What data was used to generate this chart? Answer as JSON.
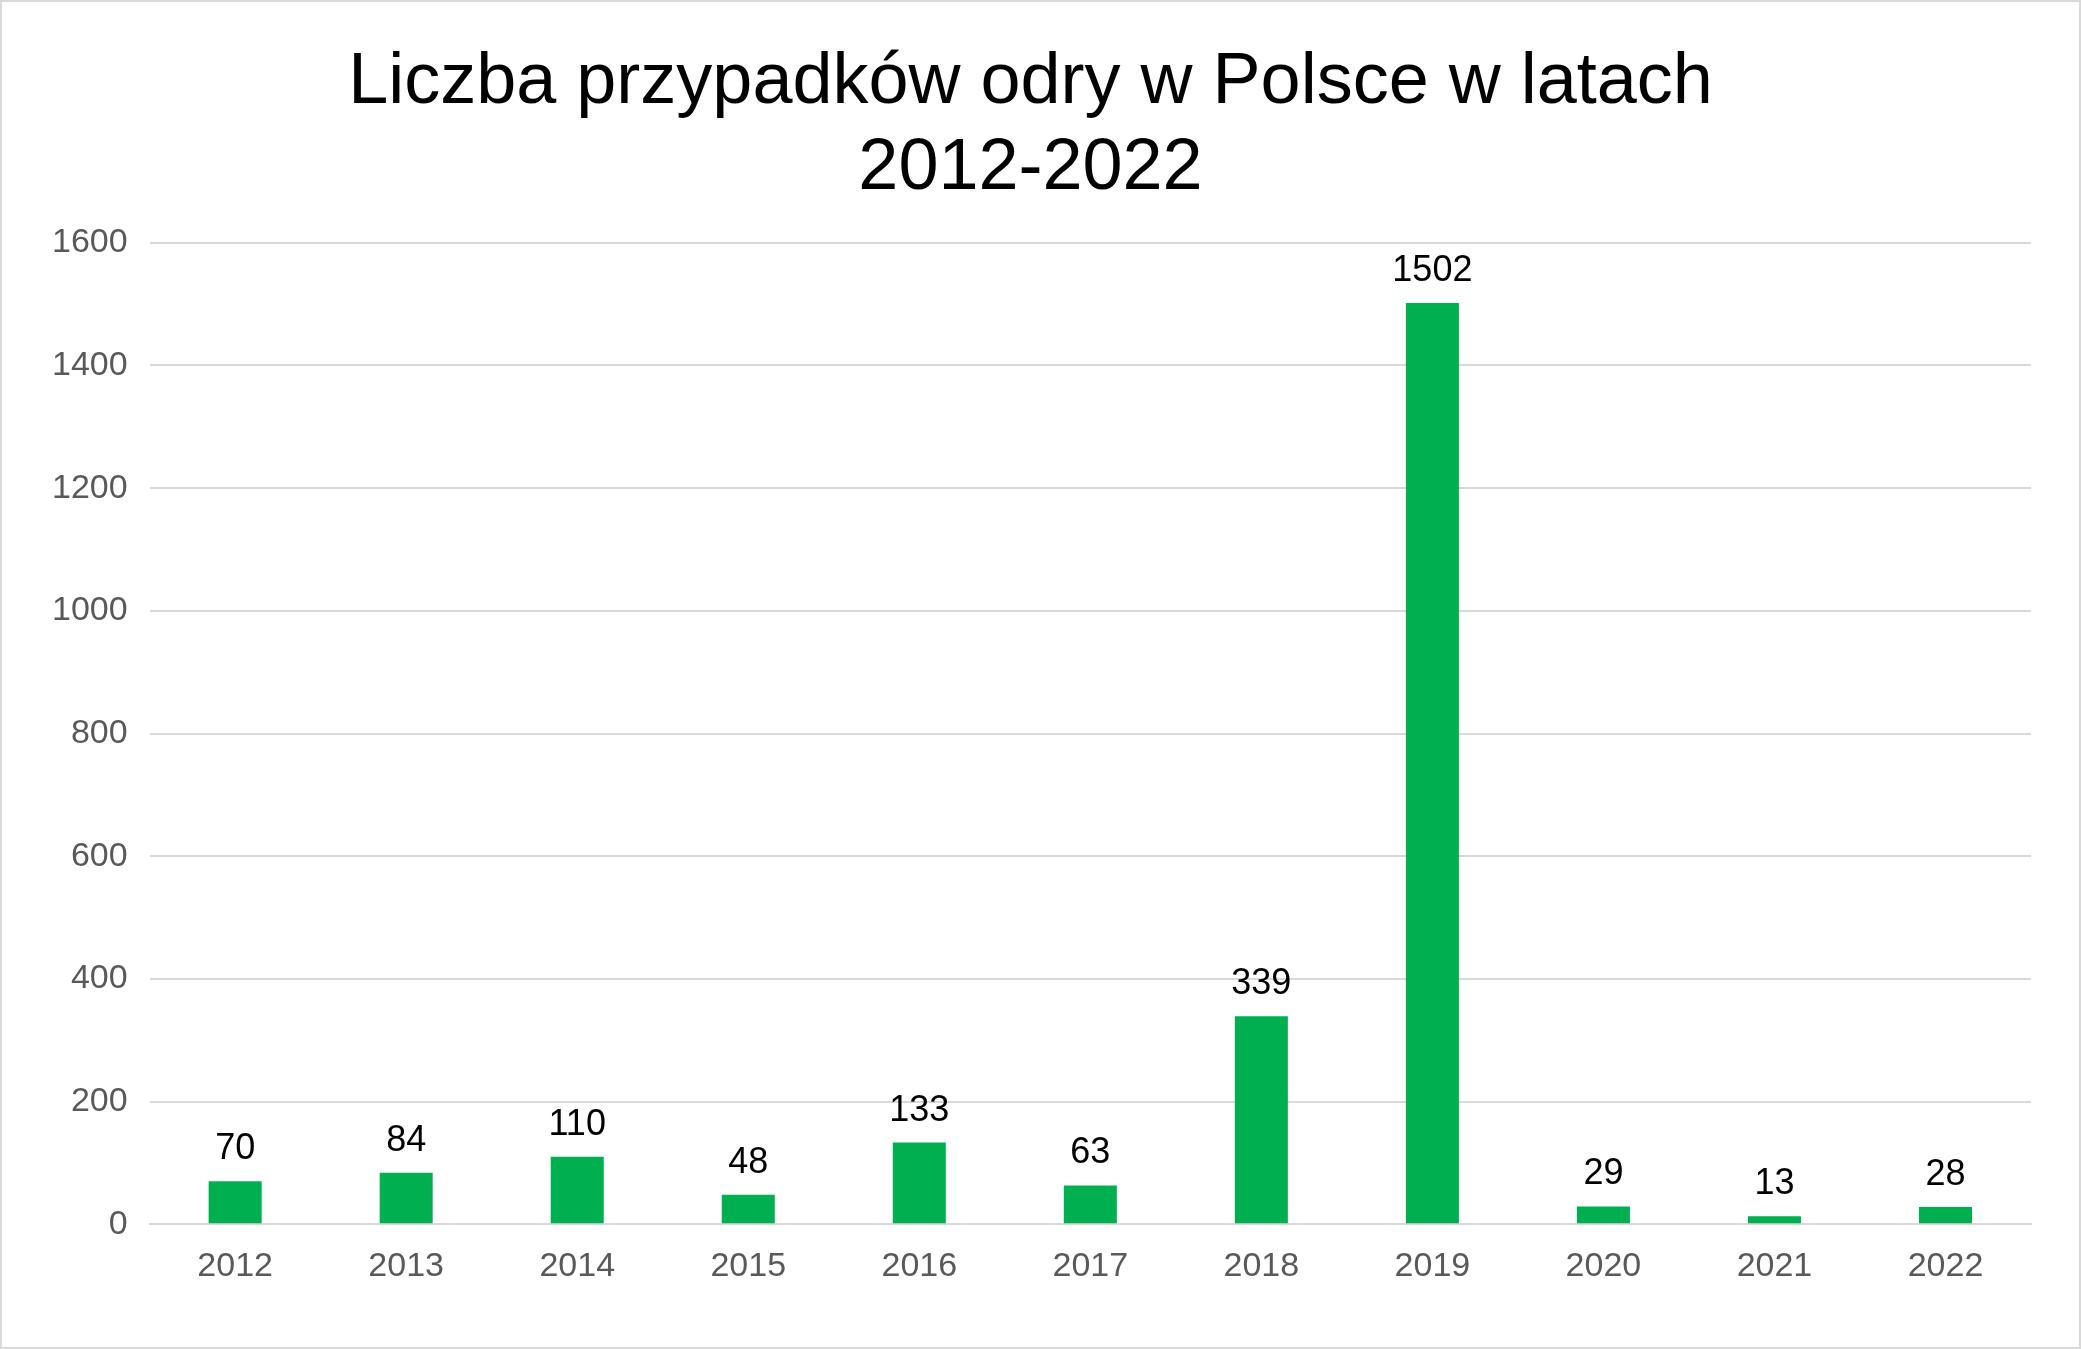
{
  "chart_data": {
    "type": "bar",
    "title": "Liczba przypadków odry w Polsce w latach 2012-2022",
    "categories": [
      "2012",
      "2013",
      "2014",
      "2015",
      "2016",
      "2017",
      "2018",
      "2019",
      "2020",
      "2021",
      "2022"
    ],
    "values": [
      70,
      84,
      110,
      48,
      133,
      63,
      339,
      1502,
      29,
      13,
      28
    ],
    "color": "#00b050",
    "ylim": [
      0,
      1600
    ],
    "yticks": [
      0,
      200,
      400,
      600,
      800,
      1000,
      1200,
      1400,
      1600
    ],
    "grid": "y",
    "data_labels": true,
    "legend": false
  }
}
